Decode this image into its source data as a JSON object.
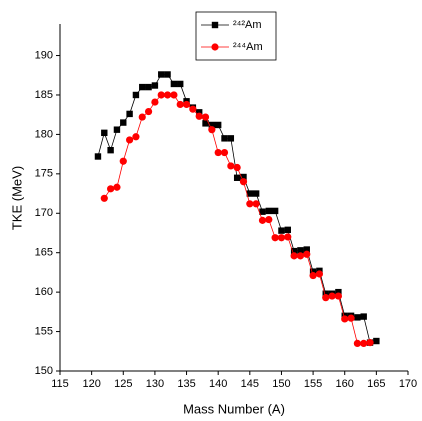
{
  "chart_data": {
    "type": "line",
    "xlabel": "Mass Number (A)",
    "ylabel": "TKE (MeV)",
    "xlim": [
      115,
      170
    ],
    "xticks": [
      115,
      120,
      125,
      130,
      135,
      140,
      145,
      150,
      155,
      160,
      165,
      170
    ],
    "ylim": [
      150,
      194
    ],
    "yticks": [
      150,
      155,
      160,
      165,
      170,
      175,
      180,
      185,
      190
    ],
    "legend": "top-center",
    "series": [
      {
        "name": "²⁴²Am",
        "color": "#000000",
        "marker": "square",
        "x": [
          121,
          122,
          123,
          124,
          125,
          126,
          127,
          128,
          129,
          130,
          131,
          132,
          133,
          134,
          135,
          136,
          137,
          138,
          139,
          140,
          141,
          142,
          143,
          144,
          145,
          146,
          147,
          148,
          149,
          150,
          151,
          152,
          153,
          154,
          155,
          156,
          157,
          158,
          159,
          160,
          161,
          162,
          163,
          164,
          165
        ],
        "values": [
          177.2,
          180.2,
          178.0,
          180.6,
          181.5,
          182.6,
          185.0,
          186.0,
          186.0,
          186.2,
          187.6,
          187.6,
          186.4,
          186.4,
          184.2,
          183.4,
          182.8,
          181.4,
          181.2,
          181.2,
          179.5,
          179.5,
          174.5,
          174.6,
          172.5,
          172.5,
          170.2,
          170.3,
          170.3,
          167.8,
          167.9,
          165.2,
          165.3,
          165.4,
          162.6,
          162.7,
          159.8,
          159.8,
          160.0,
          157.0,
          157.0,
          156.8,
          156.9,
          153.6,
          153.8
        ]
      },
      {
        "name": "²⁴⁴Am",
        "color": "#ff0000",
        "marker": "circle",
        "x": [
          122,
          123,
          124,
          125,
          126,
          127,
          128,
          129,
          130,
          131,
          132,
          133,
          134,
          135,
          136,
          137,
          138,
          139,
          140,
          141,
          142,
          143,
          144,
          145,
          146,
          147,
          148,
          149,
          150,
          151,
          152,
          153,
          154,
          155,
          156,
          157,
          158,
          159,
          160,
          161,
          162,
          163,
          164
        ],
        "values": [
          171.9,
          173.1,
          173.3,
          176.6,
          179.3,
          179.7,
          182.2,
          182.9,
          184.1,
          185.0,
          185.0,
          185.0,
          183.8,
          183.8,
          183.2,
          182.3,
          182.2,
          180.6,
          177.7,
          177.7,
          176.0,
          175.8,
          174.0,
          171.2,
          171.2,
          169.1,
          169.2,
          166.9,
          166.9,
          167.0,
          164.6,
          164.6,
          164.8,
          162.1,
          162.3,
          159.3,
          159.5,
          159.5,
          156.6,
          156.7,
          153.5,
          153.5,
          153.6
        ]
      }
    ]
  }
}
